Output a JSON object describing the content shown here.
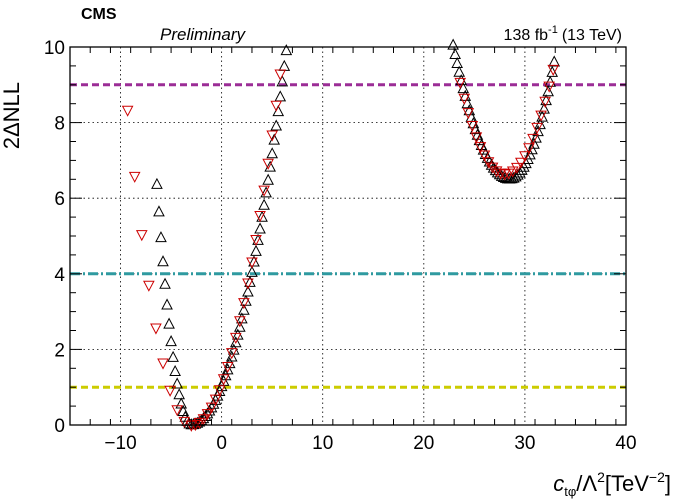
{
  "chart_data": {
    "type": "scatter",
    "title": "",
    "header_left": "CMS",
    "header_sub": "Preliminary",
    "header_right_prefix": "138 fb",
    "header_right_exp": "-1",
    "header_right_suffix": "(13 TeV)",
    "ylabel": "2ΔNLL",
    "xlabel_symbol": "c",
    "xlabel_sub": "tφ",
    "xlabel_mid": "/Λ",
    "xlabel_exp1": "2",
    "xlabel_unit": "[TeV",
    "xlabel_exp2": "−2",
    "xlabel_close": "]",
    "xlim": [
      -15,
      40
    ],
    "ylim": [
      0,
      10
    ],
    "x_ticks": [
      -10,
      0,
      10,
      20,
      30,
      40
    ],
    "x_tick_labels": [
      "−10",
      "0",
      "10",
      "20",
      "30",
      "40"
    ],
    "y_ticks": [
      0,
      2,
      4,
      6,
      8,
      10
    ],
    "y_tick_labels": [
      "0",
      "2",
      "4",
      "6",
      "8",
      "10"
    ],
    "grid": true,
    "threshold_lines": [
      {
        "y": 1,
        "color": "#cccc00",
        "style": "dashed"
      },
      {
        "y": 4,
        "color": "#2f9aa0",
        "style": "dashdot"
      },
      {
        "y": 9,
        "color": "#9b2d96",
        "style": "dashed"
      }
    ],
    "series": [
      {
        "marker": "triangle-up",
        "color": "#000000",
        "branches": [
          {
            "min_x": -3.0,
            "min_y": 0.0,
            "x_from": -6.5,
            "x_to": 6.5,
            "steep_left": 0.55,
            "steep_right": 0.112,
            "step": 0.2
          },
          {
            "min_x": 28.5,
            "min_y": 6.5,
            "x_from": 22.7,
            "x_to": 33.0,
            "steep_left": 0.113,
            "steep_right": 0.16,
            "step": 0.2
          }
        ]
      },
      {
        "marker": "triangle-down",
        "color": "#cc0000",
        "branches": [
          {
            "min_x": -3.0,
            "min_y": 0.0,
            "x_from": -10.0,
            "x_to": 5.8,
            "steep_left": 0.21,
            "steep_right": 0.12,
            "step_left": 0.7,
            "step_right": 0.4
          },
          {
            "min_x": 28.0,
            "min_y": 6.65,
            "x_from": 23.3,
            "x_to": 33.0,
            "steep_left": 0.125,
            "steep_right": 0.12,
            "step": 0.4
          }
        ]
      }
    ]
  }
}
